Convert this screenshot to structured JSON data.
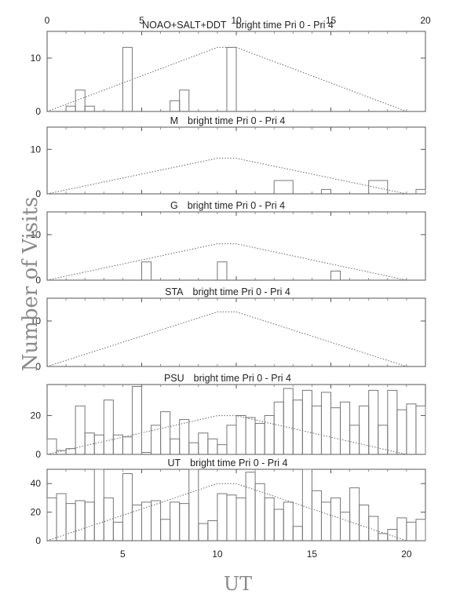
{
  "chart_data": {
    "type": "histogram",
    "ylabel": "Number of Visits",
    "xlabel": "UT",
    "top_axis": {
      "xlim": [
        0,
        20
      ],
      "ticks": [
        "0",
        "5",
        "10",
        "15",
        "20"
      ]
    },
    "bottom_axis": {
      "xlim": [
        1,
        21
      ],
      "ticks": [
        "5",
        "10",
        "15",
        "20"
      ]
    },
    "grid": false,
    "panels": [
      {
        "title_group": "NOAO+SALT+DDT",
        "title_rest": "bright time Pri 0 - Pri 4",
        "ylim": [
          0,
          15
        ],
        "yticks": [
          0,
          10
        ],
        "hist_bins": [
          [
            2.0,
            2.5,
            1
          ],
          [
            2.5,
            3.0,
            4
          ],
          [
            3.0,
            3.5,
            1
          ],
          [
            5.0,
            5.5,
            12
          ],
          [
            7.5,
            8.0,
            2
          ],
          [
            8.0,
            8.5,
            4
          ],
          [
            10.5,
            11.0,
            12
          ]
        ],
        "envelope": [
          [
            1,
            0
          ],
          [
            10,
            12
          ],
          [
            11,
            12
          ],
          [
            20,
            0
          ]
        ]
      },
      {
        "title_group": "M",
        "title_rest": "bright time Pri 0 - Pri 4",
        "ylim": [
          0,
          15
        ],
        "yticks": [
          0,
          10
        ],
        "hist_bins": [
          [
            13.0,
            14.0,
            3
          ],
          [
            15.5,
            16.0,
            1
          ],
          [
            18.0,
            19.0,
            3
          ],
          [
            20.5,
            21.0,
            1
          ]
        ],
        "envelope": [
          [
            1,
            0
          ],
          [
            10,
            8
          ],
          [
            11,
            8
          ],
          [
            20,
            0
          ]
        ]
      },
      {
        "title_group": "G",
        "title_rest": "bright time Pri 0 - Pri 4",
        "ylim": [
          0,
          15
        ],
        "yticks": [
          0,
          10
        ],
        "hist_bins": [
          [
            6.0,
            6.5,
            4
          ],
          [
            10.0,
            10.5,
            4
          ],
          [
            16.0,
            16.5,
            2
          ]
        ],
        "envelope": [
          [
            1,
            0
          ],
          [
            10,
            8
          ],
          [
            11,
            8
          ],
          [
            20,
            0
          ]
        ]
      },
      {
        "title_group": "STA",
        "title_rest": "bright time Pri 0 - Pri 4",
        "ylim": [
          0,
          15
        ],
        "yticks": [
          0,
          10
        ],
        "hist_bins": [],
        "envelope": [
          [
            1,
            0
          ],
          [
            10,
            12
          ],
          [
            11,
            12
          ],
          [
            20,
            0
          ]
        ]
      },
      {
        "title_group": "PSU",
        "title_rest": "bright time Pri 0 - Pri 4",
        "ylim": [
          0,
          36
        ],
        "yticks": [
          0,
          20
        ],
        "hist_bins": [
          [
            1.0,
            1.5,
            8
          ],
          [
            1.5,
            2.0,
            2
          ],
          [
            2.0,
            2.5,
            3
          ],
          [
            2.5,
            3.0,
            25
          ],
          [
            3.0,
            3.5,
            11
          ],
          [
            3.5,
            4.0,
            10
          ],
          [
            4.0,
            4.5,
            28
          ],
          [
            4.5,
            5.0,
            10
          ],
          [
            5.0,
            5.5,
            9
          ],
          [
            5.5,
            6.0,
            35
          ],
          [
            6.0,
            6.5,
            1
          ],
          [
            6.5,
            7.0,
            15
          ],
          [
            7.0,
            7.5,
            22
          ],
          [
            7.5,
            8.0,
            8
          ],
          [
            8.0,
            8.5,
            18
          ],
          [
            8.5,
            9.0,
            6
          ],
          [
            9.0,
            9.5,
            11
          ],
          [
            9.5,
            10.0,
            8
          ],
          [
            10.0,
            10.5,
            5
          ],
          [
            10.5,
            11.0,
            15
          ],
          [
            11.0,
            11.5,
            20
          ],
          [
            11.5,
            12.0,
            19
          ],
          [
            12.0,
            12.5,
            16
          ],
          [
            12.5,
            13.0,
            20
          ],
          [
            13.0,
            13.5,
            27
          ],
          [
            13.5,
            14.0,
            34
          ],
          [
            14.0,
            14.5,
            28
          ],
          [
            14.5,
            15.0,
            33
          ],
          [
            15.0,
            15.5,
            25
          ],
          [
            15.5,
            16.0,
            32
          ],
          [
            16.0,
            16.5,
            24
          ],
          [
            16.5,
            17.0,
            27
          ],
          [
            17.0,
            17.5,
            15
          ],
          [
            17.5,
            18.0,
            25
          ],
          [
            18.0,
            18.5,
            33
          ],
          [
            18.5,
            19.0,
            15
          ],
          [
            19.0,
            19.5,
            33
          ],
          [
            19.5,
            20.0,
            23
          ],
          [
            20.0,
            20.5,
            26
          ],
          [
            20.5,
            21.0,
            25
          ]
        ],
        "envelope": [
          [
            1,
            0
          ],
          [
            10,
            20
          ],
          [
            11,
            20
          ],
          [
            20,
            0
          ]
        ]
      },
      {
        "title_group": "UT",
        "title_rest": "bright time Pri 0 - Pri 4",
        "ylim": [
          0,
          50
        ],
        "yticks": [
          0,
          20,
          40
        ],
        "hist_bins": [
          [
            1.0,
            1.5,
            30
          ],
          [
            1.5,
            2.0,
            33
          ],
          [
            2.0,
            2.5,
            26
          ],
          [
            2.5,
            3.0,
            28
          ],
          [
            3.0,
            3.5,
            27
          ],
          [
            3.5,
            4.0,
            50
          ],
          [
            4.0,
            4.5,
            30
          ],
          [
            4.5,
            5.0,
            13
          ],
          [
            5.0,
            5.5,
            47
          ],
          [
            5.5,
            6.0,
            25
          ],
          [
            6.0,
            6.5,
            27
          ],
          [
            6.5,
            7.0,
            28
          ],
          [
            7.0,
            7.5,
            15
          ],
          [
            7.5,
            8.0,
            27
          ],
          [
            8.0,
            8.5,
            26
          ],
          [
            8.5,
            9.0,
            50
          ],
          [
            9.0,
            9.5,
            12
          ],
          [
            9.5,
            10.0,
            14
          ],
          [
            10.0,
            10.5,
            33
          ],
          [
            10.5,
            11.0,
            32
          ],
          [
            11.0,
            11.5,
            30
          ],
          [
            11.5,
            12.0,
            48
          ],
          [
            12.0,
            12.5,
            40
          ],
          [
            12.5,
            13.0,
            30
          ],
          [
            13.0,
            13.5,
            22
          ],
          [
            13.5,
            14.0,
            27
          ],
          [
            14.0,
            14.5,
            10
          ],
          [
            14.5,
            15.0,
            50
          ],
          [
            15.0,
            15.5,
            35
          ],
          [
            15.5,
            16.0,
            27
          ],
          [
            16.0,
            16.5,
            30
          ],
          [
            16.5,
            17.0,
            20
          ],
          [
            17.0,
            17.5,
            37
          ],
          [
            17.5,
            18.0,
            25
          ],
          [
            18.0,
            18.5,
            17
          ],
          [
            18.5,
            19.0,
            5
          ],
          [
            19.0,
            19.5,
            8
          ],
          [
            19.5,
            20.0,
            16
          ],
          [
            20.0,
            20.5,
            13
          ],
          [
            20.5,
            21.0,
            15
          ]
        ],
        "envelope": [
          [
            1,
            0
          ],
          [
            10,
            40
          ],
          [
            11,
            40
          ],
          [
            20,
            0
          ]
        ]
      }
    ]
  }
}
